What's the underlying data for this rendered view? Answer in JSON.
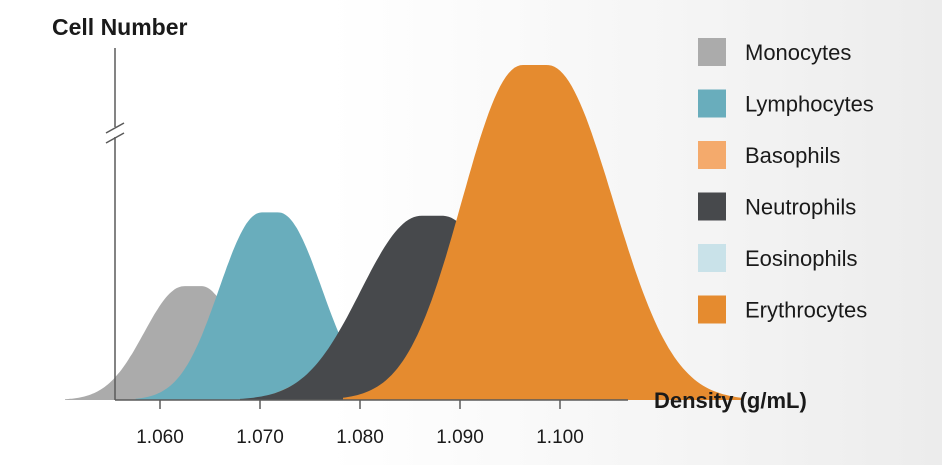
{
  "chart_data": {
    "type": "area",
    "ylabel": "Cell Number",
    "xlabel": "Density (g/mL)",
    "xlim": [
      1.055,
      1.106
    ],
    "x_ticks": [
      "1.060",
      "1.070",
      "1.080",
      "1.090",
      "1.100"
    ],
    "y_axis_break": true,
    "legend_position": "right",
    "series": [
      {
        "name": "Monocytes",
        "color": "#ababab",
        "peak_x": 1.0633,
        "height": 0.34,
        "spread_left": 0.004,
        "spread_right": 0.0035,
        "flat_top": 0.0008
      },
      {
        "name": "Lymphocytes",
        "color": "#69adbc",
        "peak_x": 1.071,
        "height": 0.56,
        "spread_left": 0.0042,
        "spread_right": 0.0043,
        "flat_top": 0.0008
      },
      {
        "name": "Basophils",
        "color": "#f4aa6c",
        "peak_x": 1.078,
        "height": 0.09,
        "spread_left": 0.0035,
        "spread_right": 0.0033,
        "flat_top": 0.0006
      },
      {
        "name": "Neutrophils",
        "color": "#47494c",
        "peak_x": 1.0872,
        "height": 0.55,
        "spread_left": 0.006,
        "spread_right": 0.0057,
        "flat_top": 0.001
      },
      {
        "name": "Eosinophils",
        "color": "#c9e2e9",
        "peak_x": 1.092,
        "height": 0.12,
        "spread_left": 0.0038,
        "spread_right": 0.0036,
        "flat_top": 0.0008
      },
      {
        "name": "Erythrocytes",
        "color": "#e58b2f",
        "peak_x": 1.0975,
        "height": 1.0,
        "spread_left": 0.006,
        "spread_right": 0.0065,
        "flat_top": 0.0012
      }
    ]
  }
}
